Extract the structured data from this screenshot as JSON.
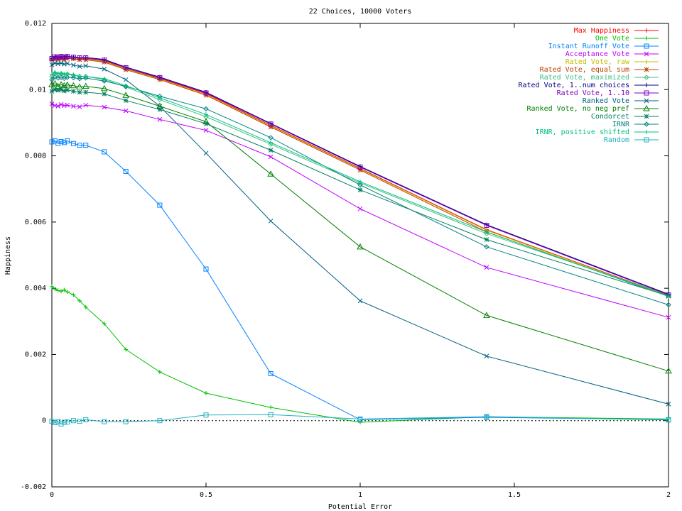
{
  "chart_data": {
    "type": "line",
    "title": "22 Choices, 10000 Voters",
    "xlabel": "Potential Error",
    "ylabel": "Happiness",
    "xlim": [
      0,
      2
    ],
    "ylim": [
      -0.002,
      0.012
    ],
    "xticks": [
      0,
      0.5,
      1,
      1.5,
      2
    ],
    "xtick_labels": [
      "0",
      "0.5",
      "1",
      "1.5",
      "2"
    ],
    "yticks": [
      -0.002,
      0,
      0.002,
      0.004,
      0.006,
      0.008,
      0.01,
      0.012
    ],
    "ytick_labels": [
      "-0.002",
      "0",
      "0.002",
      "0.004",
      "0.006",
      "0.008",
      "0.01",
      "0.012"
    ],
    "grid": false,
    "legend_position": "top-right",
    "x": [
      0,
      0.01,
      0.02,
      0.03,
      0.04,
      0.05,
      0.07,
      0.09,
      0.11,
      0.17,
      0.24,
      0.35,
      0.5,
      0.71,
      1.0,
      1.41,
      2.0
    ],
    "series": [
      {
        "name": "Max Happiness",
        "color": "#ff0000",
        "marker": "plus",
        "values": [
          0.01093,
          0.01097,
          0.01095,
          0.01097,
          0.01096,
          0.01098,
          0.01097,
          0.01094,
          0.01094,
          0.01087,
          0.01063,
          0.01034,
          0.00988,
          0.00892,
          0.00762,
          0.00577,
          0.00378
        ]
      },
      {
        "name": "One Vote",
        "color": "#00c000",
        "marker": "plus",
        "values": [
          0.00405,
          0.00398,
          0.00393,
          0.00391,
          0.00395,
          0.00389,
          0.0038,
          0.00362,
          0.00343,
          0.00293,
          0.00215,
          0.00147,
          0.00083,
          0.0004,
          -5e-05,
          0.00012,
          5e-05
        ]
      },
      {
        "name": "Instant Runoff Vote",
        "color": "#0080ff",
        "marker": "square",
        "values": [
          0.00842,
          0.00845,
          0.00838,
          0.00843,
          0.0084,
          0.00845,
          0.00837,
          0.00832,
          0.00832,
          0.00812,
          0.00753,
          0.00651,
          0.00458,
          0.00142,
          3e-05,
          0.0001,
          3e-05
        ]
      },
      {
        "name": "Acceptance Vote",
        "color": "#c000ff",
        "marker": "x",
        "values": [
          0.00957,
          0.00952,
          0.0095,
          0.00955,
          0.00952,
          0.00953,
          0.0095,
          0.00948,
          0.00953,
          0.00947,
          0.00936,
          0.0091,
          0.00877,
          0.00797,
          0.0064,
          0.00463,
          0.00312
        ]
      },
      {
        "name": "Rated Vote, raw",
        "color": "#c0c000",
        "marker": "plus",
        "values": [
          0.01092,
          0.01094,
          0.01093,
          0.01095,
          0.01093,
          0.01096,
          0.01095,
          0.01092,
          0.01092,
          0.01085,
          0.01062,
          0.01032,
          0.00985,
          0.0089,
          0.0076,
          0.00575,
          0.00377
        ]
      },
      {
        "name": "Rated Vote, equal sum",
        "color": "#c04000",
        "marker": "star",
        "values": [
          0.0109,
          0.01092,
          0.01091,
          0.01093,
          0.01091,
          0.01094,
          0.01093,
          0.0109,
          0.0109,
          0.01083,
          0.0106,
          0.0103,
          0.00983,
          0.00887,
          0.00757,
          0.0057,
          0.00376
        ]
      },
      {
        "name": "Rated Vote, maximized",
        "color": "#40c080",
        "marker": "diamond",
        "values": [
          0.0104,
          0.0105,
          0.01046,
          0.01048,
          0.01045,
          0.01047,
          0.01043,
          0.0104,
          0.0104,
          0.0103,
          0.01008,
          0.0097,
          0.00918,
          0.00835,
          0.00718,
          0.00565,
          0.0038
        ]
      },
      {
        "name": "Rated Vote, 1..num choices",
        "color": "#000080",
        "marker": "plus",
        "values": [
          0.01095,
          0.011,
          0.01098,
          0.011,
          0.01099,
          0.01101,
          0.01099,
          0.01097,
          0.01097,
          0.01091,
          0.01068,
          0.01038,
          0.00992,
          0.00898,
          0.00768,
          0.00592,
          0.00382
        ]
      },
      {
        "name": "Rated Vote, 1..10",
        "color": "#8000c0",
        "marker": "square",
        "values": [
          0.01094,
          0.01099,
          0.01097,
          0.011,
          0.01098,
          0.011,
          0.01098,
          0.01096,
          0.01096,
          0.01089,
          0.01066,
          0.01036,
          0.0099,
          0.00896,
          0.00766,
          0.0059,
          0.0038
        ]
      },
      {
        "name": "Ranked Vote",
        "color": "#006080",
        "marker": "x",
        "values": [
          0.01075,
          0.0108,
          0.01078,
          0.0108,
          0.01077,
          0.01079,
          0.01074,
          0.0107,
          0.01072,
          0.01062,
          0.0103,
          0.0095,
          0.00808,
          0.00603,
          0.00362,
          0.00195,
          0.0005
        ]
      },
      {
        "name": "Ranked Vote, no neg pref",
        "color": "#008000",
        "marker": "triangle",
        "values": [
          0.01015,
          0.01018,
          0.0101,
          0.01015,
          0.01012,
          0.01014,
          0.01012,
          0.01008,
          0.0101,
          0.01003,
          0.00983,
          0.0095,
          0.00903,
          0.00745,
          0.00525,
          0.00318,
          0.0015
        ]
      },
      {
        "name": "Condorcet",
        "color": "#008060",
        "marker": "star",
        "values": [
          0.00995,
          0.01,
          0.00998,
          0.01,
          0.00996,
          0.00999,
          0.00995,
          0.00992,
          0.00992,
          0.00987,
          0.00967,
          0.0094,
          0.00897,
          0.00817,
          0.00697,
          0.00547,
          0.00377
        ]
      },
      {
        "name": "IRNR",
        "color": "#008080",
        "marker": "diamond",
        "values": [
          0.0103,
          0.01038,
          0.01035,
          0.01037,
          0.01034,
          0.01037,
          0.01036,
          0.01033,
          0.01035,
          0.01026,
          0.0101,
          0.0098,
          0.00942,
          0.00855,
          0.00712,
          0.00525,
          0.0035
        ]
      },
      {
        "name": "IRNR, positive shifted",
        "color": "#00c080",
        "marker": "plus",
        "values": [
          0.01045,
          0.01052,
          0.01048,
          0.0105,
          0.01047,
          0.01048,
          0.01045,
          0.0104,
          0.0104,
          0.01033,
          0.01012,
          0.00975,
          0.00925,
          0.0084,
          0.00722,
          0.0057,
          0.00375
        ]
      },
      {
        "name": "Random",
        "color": "#20b0c0",
        "marker": "square",
        "values": [
          -2e-05,
          -6e-05,
          -3e-05,
          -0.0001,
          -5e-05,
          -4e-05,
          0.0,
          -2e-05,
          3e-05,
          -3e-05,
          -3e-05,
          0.0,
          0.00017,
          0.00018,
          5e-05,
          0.00012,
          2e-05
        ]
      }
    ]
  }
}
